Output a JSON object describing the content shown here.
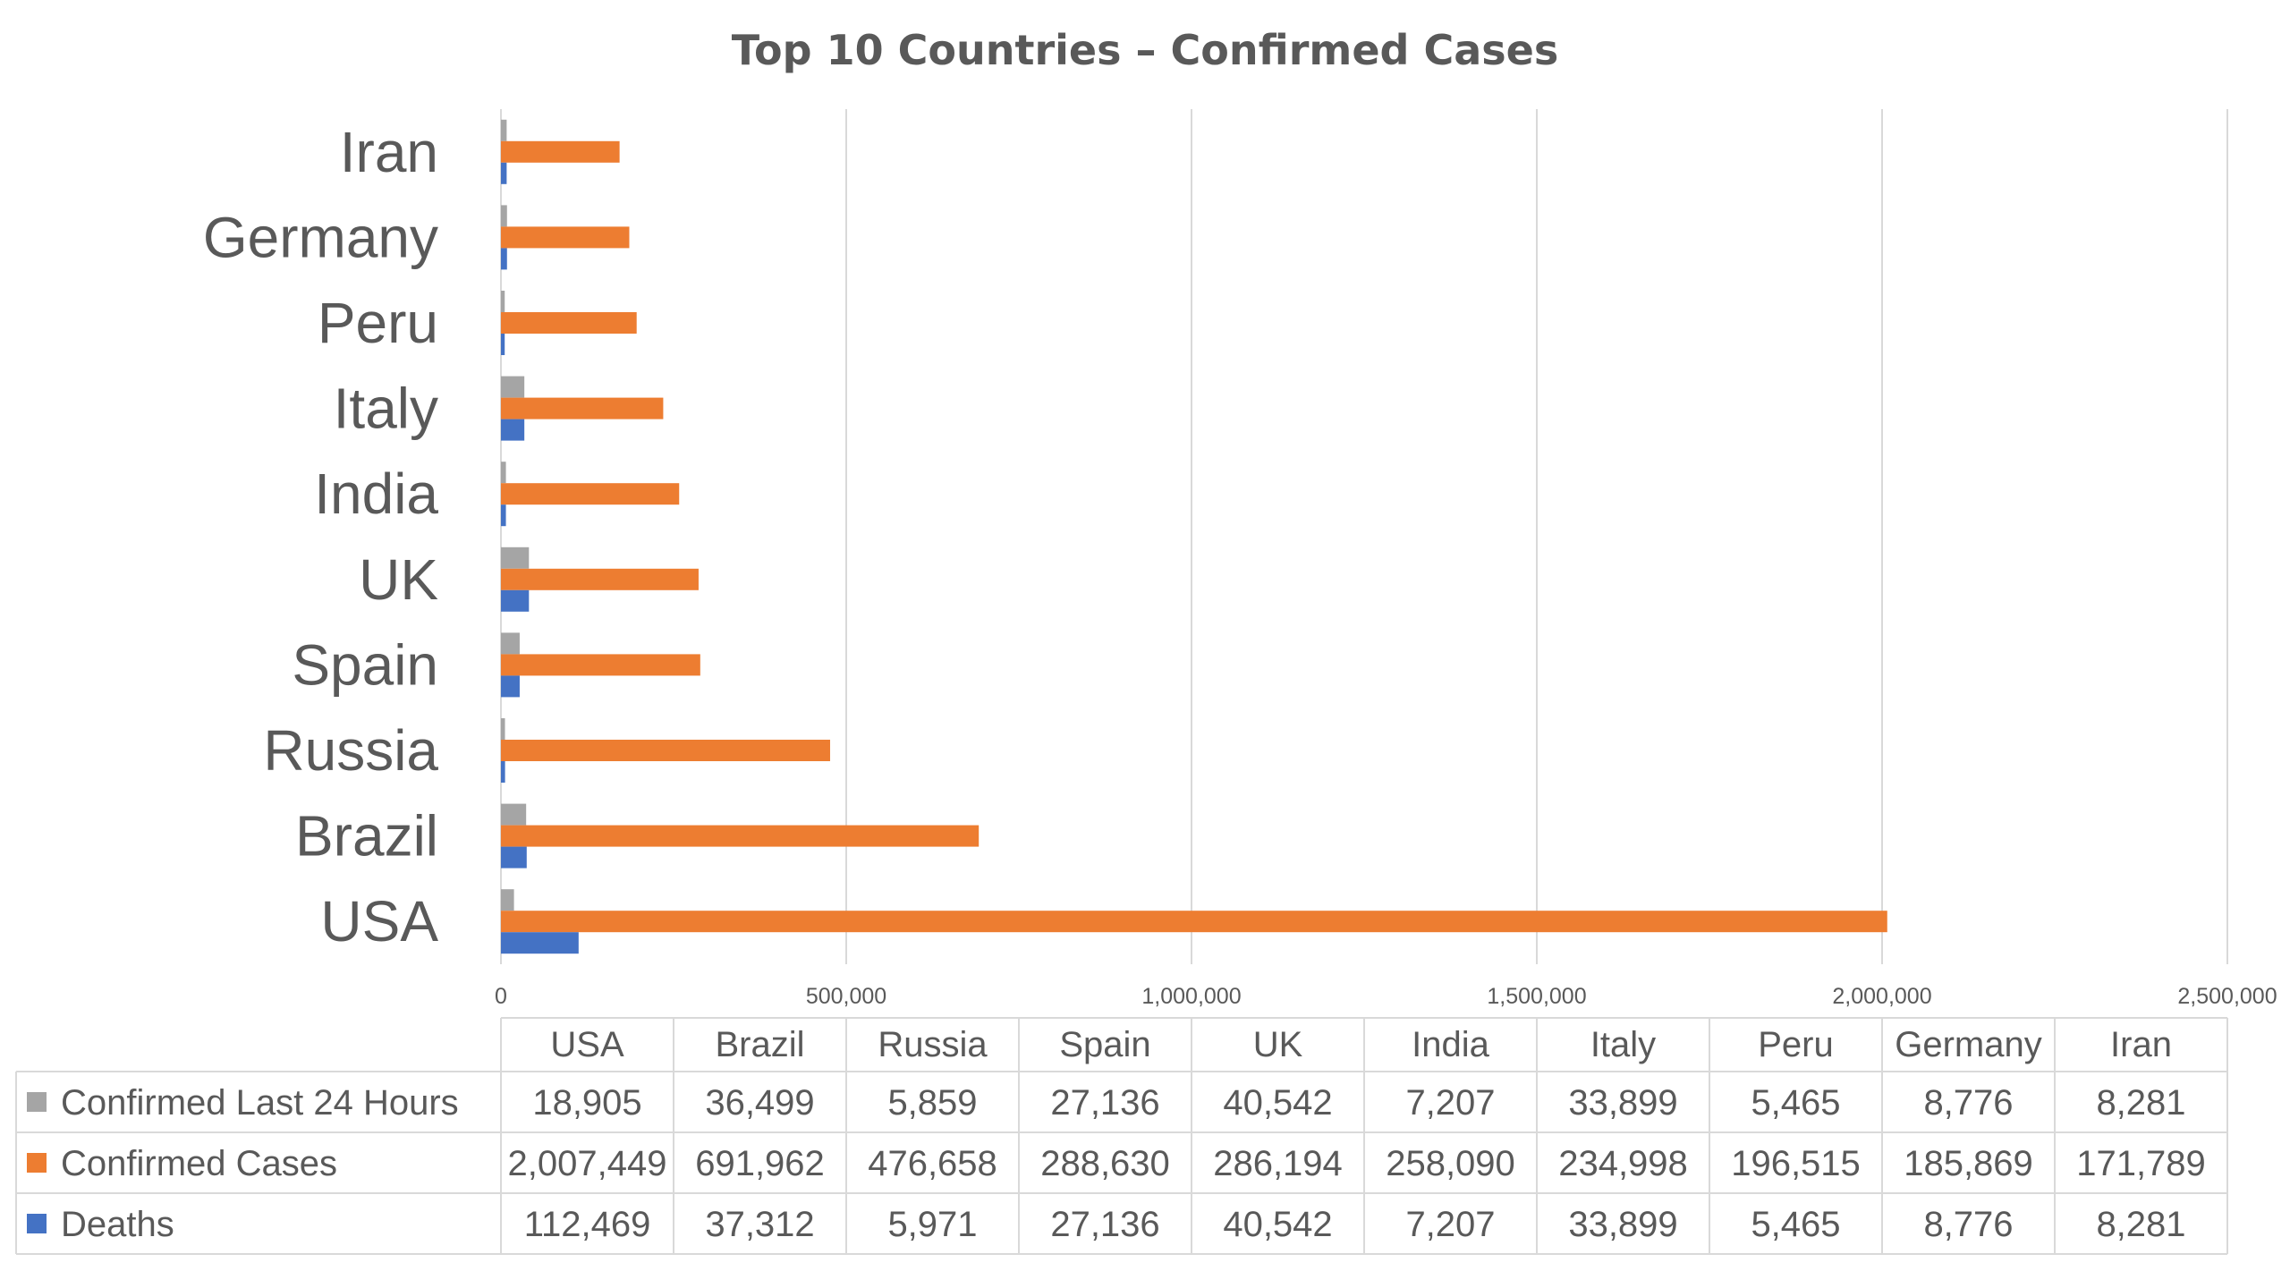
{
  "chart_data": {
    "type": "bar",
    "orientation": "horizontal",
    "title": "Top 10 Countries – Confirmed Cases",
    "categories": [
      "USA",
      "Brazil",
      "Russia",
      "Spain",
      "UK",
      "India",
      "Italy",
      "Peru",
      "Germany",
      "Iran"
    ],
    "series": [
      {
        "name": "Confirmed Last 24 Hours",
        "color": "#a5a5a5",
        "values": [
          18905,
          36499,
          5859,
          27136,
          40542,
          7207,
          33899,
          5465,
          8776,
          8281
        ],
        "labels": [
          "18,905",
          "36,499",
          "5,859",
          "27,136",
          "40,542",
          "7,207",
          "33,899",
          "5,465",
          "8,776",
          "8,281"
        ]
      },
      {
        "name": "Confirmed Cases",
        "color": "#ed7d31",
        "values": [
          2007449,
          691962,
          476658,
          288630,
          286194,
          258090,
          234998,
          196515,
          185869,
          171789
        ],
        "labels": [
          "2,007,449",
          "691,962",
          "476,658",
          "288,630",
          "286,194",
          "258,090",
          "234,998",
          "196,515",
          "185,869",
          "171,789"
        ]
      },
      {
        "name": "Deaths",
        "color": "#4472c4",
        "values": [
          112469,
          37312,
          5971,
          27136,
          40542,
          7207,
          33899,
          5465,
          8776,
          8281
        ],
        "labels": [
          "112,469",
          "37,312",
          "5,971",
          "27,136",
          "40,542",
          "7,207",
          "33,899",
          "5,465",
          "8,776",
          "8,281"
        ]
      }
    ],
    "xlim": [
      0,
      2500000
    ],
    "ticks": [
      0,
      500000,
      1000000,
      1500000,
      2000000,
      2500000
    ],
    "tick_labels": [
      "0",
      "500,000",
      "1,000,000",
      "1,500,000",
      "2,000,000",
      "2,500,000"
    ],
    "grid": true,
    "data_table": true,
    "xlabel": "",
    "ylabel": ""
  }
}
